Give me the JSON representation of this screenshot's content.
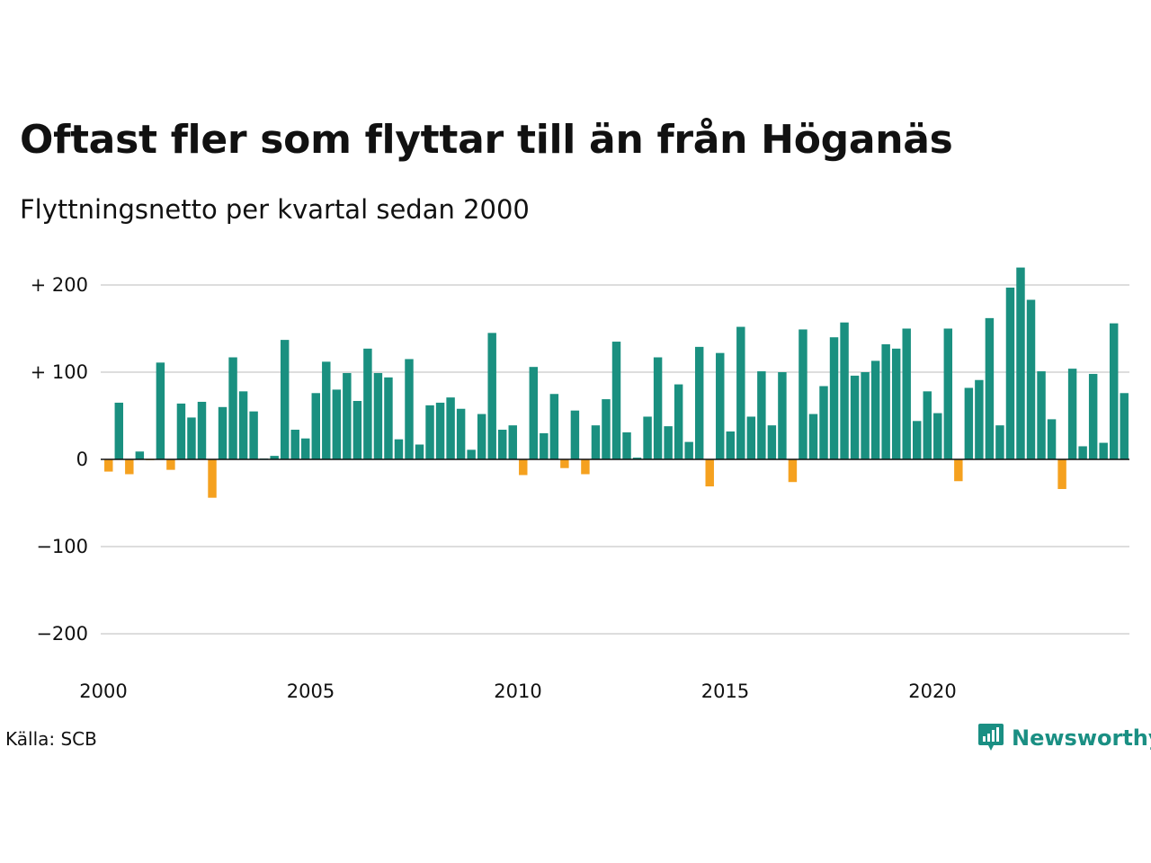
{
  "title": "Oftast fler som flyttar till än från Höganäs",
  "subtitle": "Flyttningsnetto per kvartal sedan 2000",
  "source": "Källa: SCB",
  "brand": {
    "name": "Newsworthy",
    "icon": "newsworthy-logo-icon",
    "color": "#1a8f83"
  },
  "colors": {
    "positive": "#1a9080",
    "negative": "#f5a11f",
    "grid": "#dddddd",
    "baseline": "#111111"
  },
  "chart_data": {
    "type": "bar",
    "title": "Oftast fler som flyttar till än från Höganäs",
    "subtitle": "Flyttningsnetto per kvartal sedan 2000",
    "xlabel": "",
    "ylabel": "",
    "ylim": [
      -230,
      230
    ],
    "y_ticks": [
      -200,
      -100,
      0,
      100,
      200
    ],
    "y_tick_labels": [
      "−200",
      "−100",
      "0",
      "+ 100",
      "+ 200"
    ],
    "x_ticks": [
      2000,
      2005,
      2010,
      2015,
      2020
    ],
    "x_tick_labels": [
      "2000",
      "2005",
      "2010",
      "2015",
      "2020"
    ],
    "grid": true,
    "start_year": 2000,
    "values": [
      -14,
      65,
      -17,
      9,
      -1,
      111,
      -12,
      64,
      48,
      66,
      -44,
      60,
      117,
      78,
      55,
      1,
      4,
      137,
      34,
      24,
      76,
      112,
      80,
      99,
      67,
      127,
      99,
      94,
      23,
      115,
      17,
      62,
      65,
      71,
      58,
      11,
      52,
      145,
      34,
      39,
      -18,
      106,
      30,
      75,
      -10,
      56,
      -17,
      39,
      69,
      135,
      31,
      2,
      49,
      117,
      38,
      86,
      20,
      129,
      -31,
      122,
      32,
      152,
      49,
      101,
      39,
      100,
      -26,
      149,
      52,
      84,
      140,
      157,
      96,
      100,
      113,
      132,
      127,
      150,
      44,
      78,
      53,
      150,
      -25,
      82,
      91,
      162,
      39,
      197,
      220,
      183,
      101,
      46,
      -34,
      104,
      15,
      98,
      19,
      156,
      76
    ]
  }
}
